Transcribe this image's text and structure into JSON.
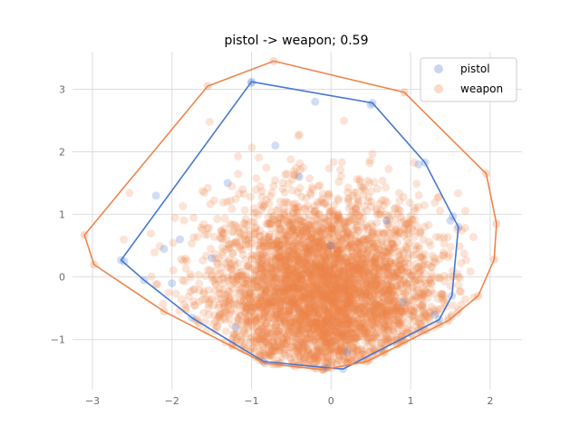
{
  "chart_data": {
    "type": "scatter",
    "title": "pistol -> weapon; 0.59",
    "xlabel": "",
    "ylabel": "",
    "xlim": [
      -3.25,
      2.4
    ],
    "ylim": [
      -1.8,
      3.6
    ],
    "xticks": [
      -3,
      -2,
      -1,
      0,
      1,
      2
    ],
    "yticks": [
      -1,
      0,
      1,
      2,
      3
    ],
    "grid": true,
    "legend_position": "top-right",
    "colors": {
      "pistol": "#4878d0",
      "weapon": "#ee854a"
    },
    "series": [
      {
        "name": "pistol",
        "hull": [
          [
            -1.0,
            3.12
          ],
          [
            0.52,
            2.78
          ],
          [
            1.18,
            1.83
          ],
          [
            1.53,
            0.97
          ],
          [
            1.6,
            0.8
          ],
          [
            1.52,
            -0.3
          ],
          [
            1.36,
            -0.68
          ],
          [
            0.15,
            -1.47
          ],
          [
            -0.05,
            -1.45
          ],
          [
            -0.85,
            -1.35
          ],
          [
            -1.75,
            -0.65
          ],
          [
            -2.35,
            -0.05
          ],
          [
            -2.64,
            0.27
          ]
        ],
        "points_sample": [
          [
            -2.6,
            0.25
          ],
          [
            -2.2,
            1.3
          ],
          [
            -2.1,
            0.45
          ],
          [
            -2.0,
            -0.1
          ],
          [
            -1.9,
            0.6
          ],
          [
            -1.5,
            0.3
          ],
          [
            -1.3,
            1.5
          ],
          [
            -1.2,
            -0.8
          ],
          [
            -1.0,
            3.1
          ],
          [
            -0.7,
            2.1
          ],
          [
            -0.4,
            1.6
          ],
          [
            -0.2,
            2.8
          ],
          [
            0.0,
            0.5
          ],
          [
            0.2,
            -1.2
          ],
          [
            0.5,
            2.75
          ],
          [
            0.7,
            0.9
          ],
          [
            1.1,
            1.8
          ],
          [
            1.3,
            -0.6
          ],
          [
            1.5,
            0.9
          ],
          [
            0.9,
            -0.4
          ]
        ]
      },
      {
        "name": "weapon",
        "hull": [
          [
            -0.72,
            3.45
          ],
          [
            0.92,
            2.95
          ],
          [
            1.95,
            1.65
          ],
          [
            2.08,
            0.85
          ],
          [
            2.05,
            0.28
          ],
          [
            1.85,
            -0.3
          ],
          [
            1.47,
            -0.7
          ],
          [
            0.45,
            -1.35
          ],
          [
            -0.1,
            -1.48
          ],
          [
            -0.83,
            -1.38
          ],
          [
            -2.1,
            -0.55
          ],
          [
            -2.98,
            0.2
          ],
          [
            -3.1,
            0.67
          ],
          [
            -1.55,
            3.05
          ]
        ],
        "n_points": 4000
      }
    ]
  }
}
